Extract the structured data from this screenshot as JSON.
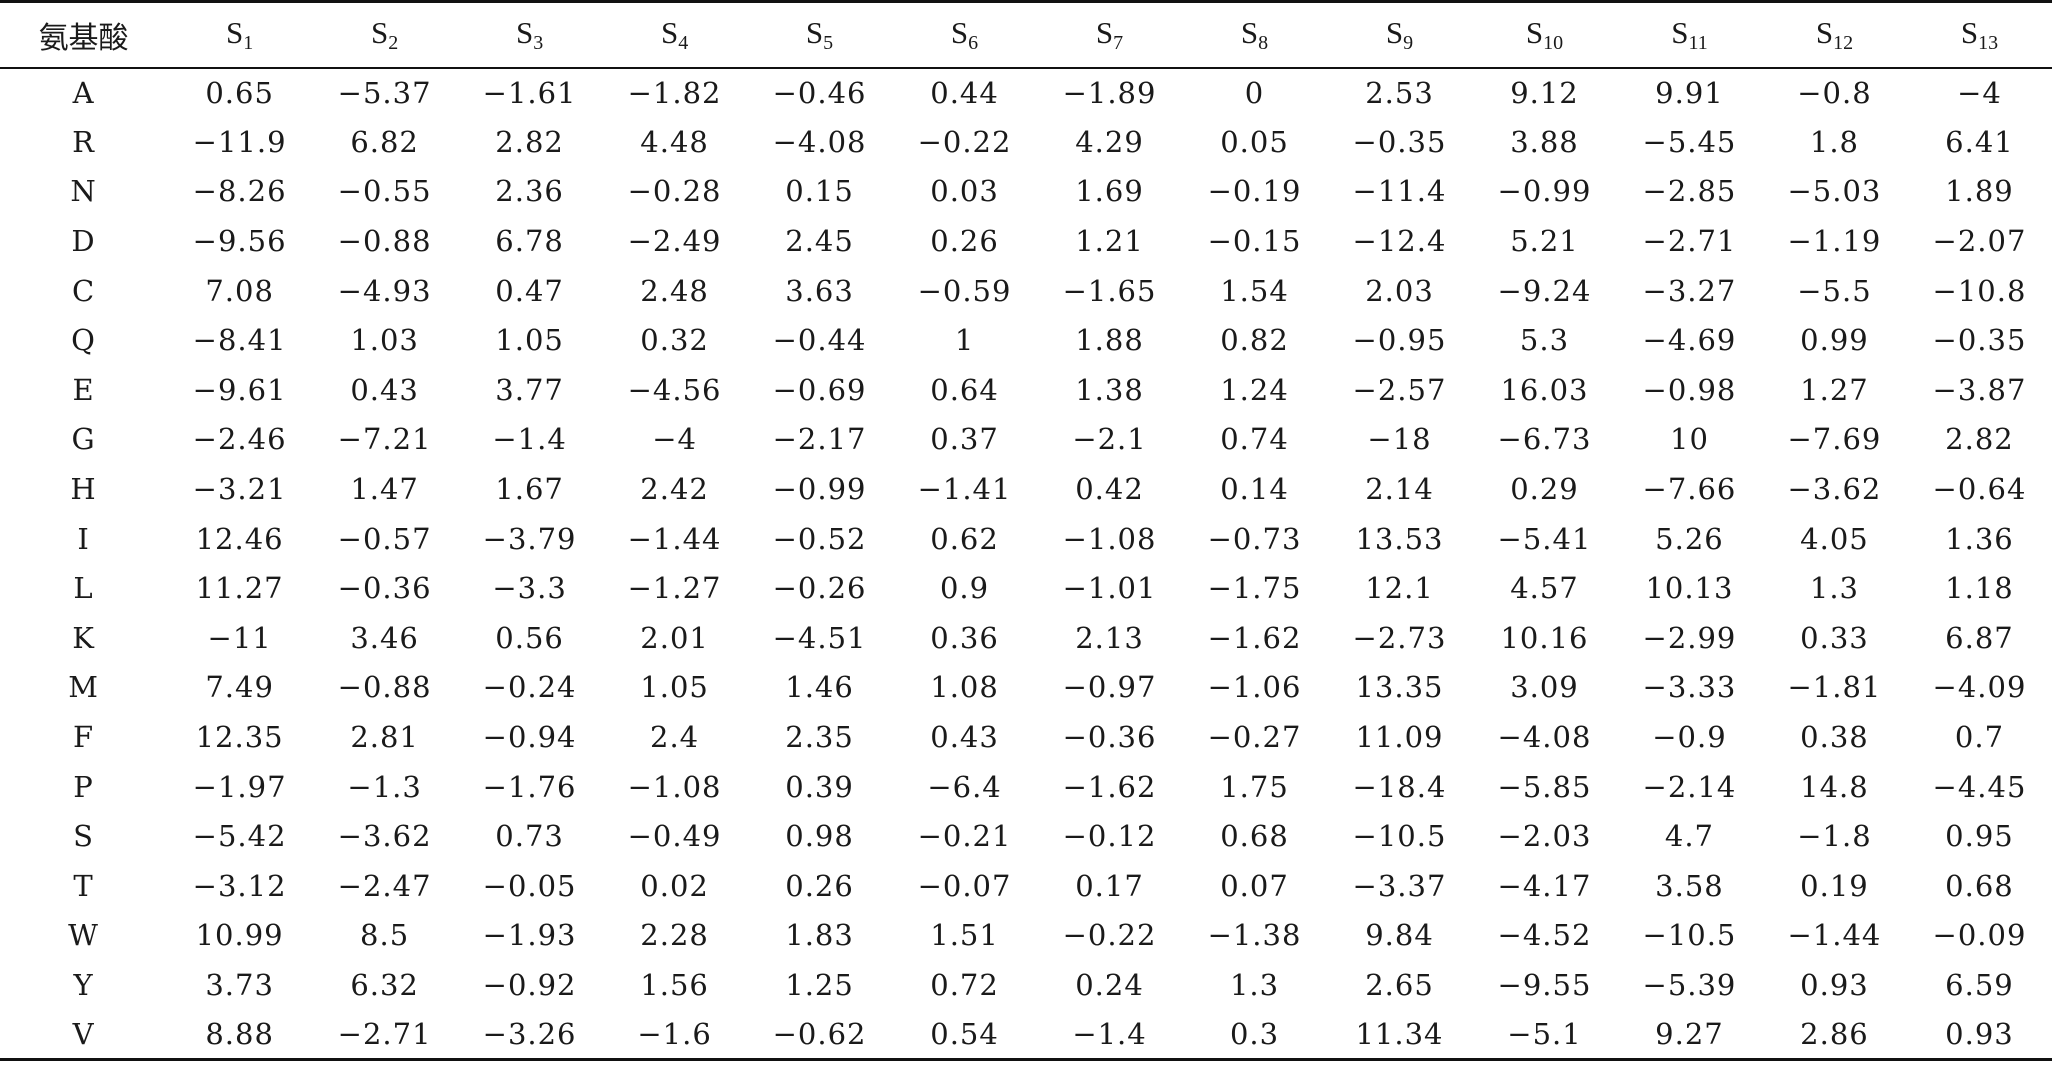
{
  "table": {
    "header": {
      "first": "氨基酸",
      "columns": [
        {
          "letter": "S",
          "sub": "1"
        },
        {
          "letter": "S",
          "sub": "2"
        },
        {
          "letter": "S",
          "sub": "3"
        },
        {
          "letter": "S",
          "sub": "4"
        },
        {
          "letter": "S",
          "sub": "5"
        },
        {
          "letter": "S",
          "sub": "6"
        },
        {
          "letter": "S",
          "sub": "7"
        },
        {
          "letter": "S",
          "sub": "8"
        },
        {
          "letter": "S",
          "sub": "9"
        },
        {
          "letter": "S",
          "sub": "10"
        },
        {
          "letter": "S",
          "sub": "11"
        },
        {
          "letter": "S",
          "sub": "12"
        },
        {
          "letter": "S",
          "sub": "13"
        }
      ]
    },
    "rows": [
      {
        "label": "A",
        "values": [
          "0.65",
          "−5.37",
          "−1.61",
          "−1.82",
          "−0.46",
          "0.44",
          "−1.89",
          "0",
          "2.53",
          "9.12",
          "9.91",
          "−0.8",
          "−4"
        ]
      },
      {
        "label": "R",
        "values": [
          "−11.9",
          "6.82",
          "2.82",
          "4.48",
          "−4.08",
          "−0.22",
          "4.29",
          "0.05",
          "−0.35",
          "3.88",
          "−5.45",
          "1.8",
          "6.41"
        ]
      },
      {
        "label": "N",
        "values": [
          "−8.26",
          "−0.55",
          "2.36",
          "−0.28",
          "0.15",
          "0.03",
          "1.69",
          "−0.19",
          "−11.4",
          "−0.99",
          "−2.85",
          "−5.03",
          "1.89"
        ]
      },
      {
        "label": "D",
        "values": [
          "−9.56",
          "−0.88",
          "6.78",
          "−2.49",
          "2.45",
          "0.26",
          "1.21",
          "−0.15",
          "−12.4",
          "5.21",
          "−2.71",
          "−1.19",
          "−2.07"
        ]
      },
      {
        "label": "C",
        "values": [
          "7.08",
          "−4.93",
          "0.47",
          "2.48",
          "3.63",
          "−0.59",
          "−1.65",
          "1.54",
          "2.03",
          "−9.24",
          "−3.27",
          "−5.5",
          "−10.8"
        ]
      },
      {
        "label": "Q",
        "values": [
          "−8.41",
          "1.03",
          "1.05",
          "0.32",
          "−0.44",
          "1",
          "1.88",
          "0.82",
          "−0.95",
          "5.3",
          "−4.69",
          "0.99",
          "−0.35"
        ]
      },
      {
        "label": "E",
        "values": [
          "−9.61",
          "0.43",
          "3.77",
          "−4.56",
          "−0.69",
          "0.64",
          "1.38",
          "1.24",
          "−2.57",
          "16.03",
          "−0.98",
          "1.27",
          "−3.87"
        ]
      },
      {
        "label": "G",
        "values": [
          "−2.46",
          "−7.21",
          "−1.4",
          "−4",
          "−2.17",
          "0.37",
          "−2.1",
          "0.74",
          "−18",
          "−6.73",
          "10",
          "−7.69",
          "2.82"
        ]
      },
      {
        "label": "H",
        "values": [
          "−3.21",
          "1.47",
          "1.67",
          "2.42",
          "−0.99",
          "−1.41",
          "0.42",
          "0.14",
          "2.14",
          "0.29",
          "−7.66",
          "−3.62",
          "−0.64"
        ]
      },
      {
        "label": "I",
        "values": [
          "12.46",
          "−0.57",
          "−3.79",
          "−1.44",
          "−0.52",
          "0.62",
          "−1.08",
          "−0.73",
          "13.53",
          "−5.41",
          "5.26",
          "4.05",
          "1.36"
        ]
      },
      {
        "label": "L",
        "values": [
          "11.27",
          "−0.36",
          "−3.3",
          "−1.27",
          "−0.26",
          "0.9",
          "−1.01",
          "−1.75",
          "12.1",
          "4.57",
          "10.13",
          "1.3",
          "1.18"
        ]
      },
      {
        "label": "K",
        "values": [
          "−11",
          "3.46",
          "0.56",
          "2.01",
          "−4.51",
          "0.36",
          "2.13",
          "−1.62",
          "−2.73",
          "10.16",
          "−2.99",
          "0.33",
          "6.87"
        ]
      },
      {
        "label": "M",
        "values": [
          "7.49",
          "−0.88",
          "−0.24",
          "1.05",
          "1.46",
          "1.08",
          "−0.97",
          "−1.06",
          "13.35",
          "3.09",
          "−3.33",
          "−1.81",
          "−4.09"
        ]
      },
      {
        "label": "F",
        "values": [
          "12.35",
          "2.81",
          "−0.94",
          "2.4",
          "2.35",
          "0.43",
          "−0.36",
          "−0.27",
          "11.09",
          "−4.08",
          "−0.9",
          "0.38",
          "0.7"
        ]
      },
      {
        "label": "P",
        "values": [
          "−1.97",
          "−1.3",
          "−1.76",
          "−1.08",
          "0.39",
          "−6.4",
          "−1.62",
          "1.75",
          "−18.4",
          "−5.85",
          "−2.14",
          "14.8",
          "−4.45"
        ]
      },
      {
        "label": "S",
        "values": [
          "−5.42",
          "−3.62",
          "0.73",
          "−0.49",
          "0.98",
          "−0.21",
          "−0.12",
          "0.68",
          "−10.5",
          "−2.03",
          "4.7",
          "−1.8",
          "0.95"
        ]
      },
      {
        "label": "T",
        "values": [
          "−3.12",
          "−2.47",
          "−0.05",
          "0.02",
          "0.26",
          "−0.07",
          "0.17",
          "0.07",
          "−3.37",
          "−4.17",
          "3.58",
          "0.19",
          "0.68"
        ]
      },
      {
        "label": "W",
        "values": [
          "10.99",
          "8.5",
          "−1.93",
          "2.28",
          "1.83",
          "1.51",
          "−0.22",
          "−1.38",
          "9.84",
          "−4.52",
          "−10.5",
          "−1.44",
          "−0.09"
        ]
      },
      {
        "label": "Y",
        "values": [
          "3.73",
          "6.32",
          "−0.92",
          "1.56",
          "1.25",
          "0.72",
          "0.24",
          "1.3",
          "2.65",
          "−9.55",
          "−5.39",
          "0.93",
          "6.59"
        ]
      },
      {
        "label": "V",
        "values": [
          "8.88",
          "−2.71",
          "−3.26",
          "−1.6",
          "−0.62",
          "0.54",
          "−1.4",
          "0.3",
          "11.34",
          "−5.1",
          "9.27",
          "2.86",
          "0.93"
        ]
      }
    ]
  }
}
